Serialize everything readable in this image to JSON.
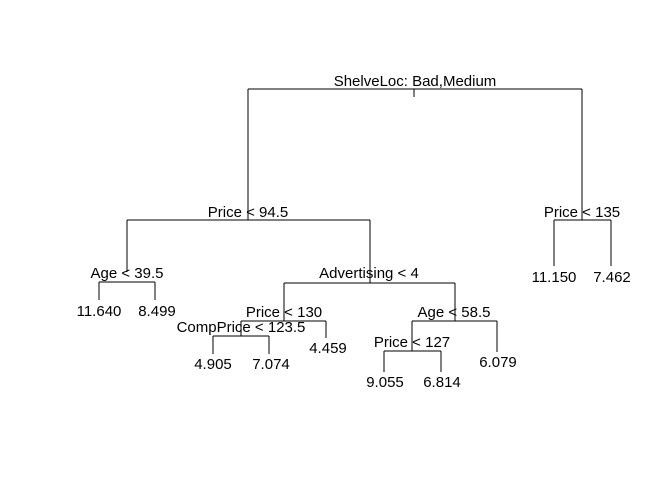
{
  "tree": {
    "split_labels": {
      "root": "ShelveLoc: Bad,Medium",
      "price_94_5": "Price < 94.5",
      "age_39_5": "Age < 39.5",
      "advertising_4": "Advertising < 4",
      "price_130": "Price < 130",
      "compprice_123_5": "CompPrice < 123.5",
      "age_58_5": "Age < 58.5",
      "price_127": "Price < 127",
      "price_135": "Price < 135"
    },
    "leaf_values": {
      "age_lt_yes": "11.640",
      "age_lt_no": "8.499",
      "comp_yes": "4.905",
      "comp_no": "7.074",
      "price130_no": "4.459",
      "price127_yes": "9.055",
      "price127_no": "6.814",
      "age58_no": "6.079",
      "price135_yes": "11.150",
      "price135_no": "7.462"
    }
  }
}
